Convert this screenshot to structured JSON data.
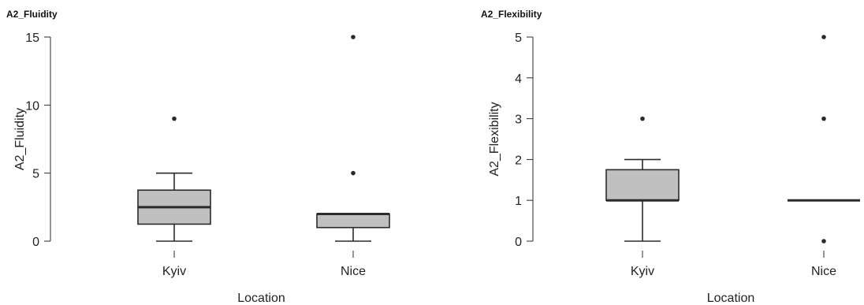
{
  "chart_data": [
    {
      "type": "box",
      "title": "A2_Fluidity",
      "xlabel": "Location",
      "ylabel": "A2_Fluidity",
      "categories": [
        "Kyiv",
        "Nice"
      ],
      "ylim": [
        0,
        15
      ],
      "yticks": [
        0,
        5,
        10,
        15
      ],
      "grid": false,
      "box_fill": "#c0c0c0",
      "boxes": [
        {
          "category": "Kyiv",
          "whisker_low": 0,
          "q1": 1.25,
          "median": 2.5,
          "q3": 3.75,
          "whisker_high": 5,
          "outliers": [
            9
          ]
        },
        {
          "category": "Nice",
          "whisker_low": 0,
          "q1": 1,
          "median": 2,
          "q3": 2,
          "whisker_high": 2,
          "outliers": [
            5,
            15
          ]
        }
      ]
    },
    {
      "type": "box",
      "title": "A2_Flexibility",
      "xlabel": "Location",
      "ylabel": "A2_Flexibility",
      "categories": [
        "Kyiv",
        "Nice"
      ],
      "ylim": [
        0,
        5
      ],
      "yticks": [
        0,
        1,
        2,
        3,
        4,
        5
      ],
      "grid": false,
      "box_fill": "#c0c0c0",
      "boxes": [
        {
          "category": "Kyiv",
          "whisker_low": 0,
          "q1": 1,
          "median": 1,
          "q3": 1.75,
          "whisker_high": 2,
          "outliers": [
            3
          ]
        },
        {
          "category": "Nice",
          "whisker_low": 1,
          "q1": 1,
          "median": 1,
          "q3": 1,
          "whisker_high": 1,
          "outliers": [
            0,
            3,
            5
          ]
        }
      ]
    }
  ]
}
